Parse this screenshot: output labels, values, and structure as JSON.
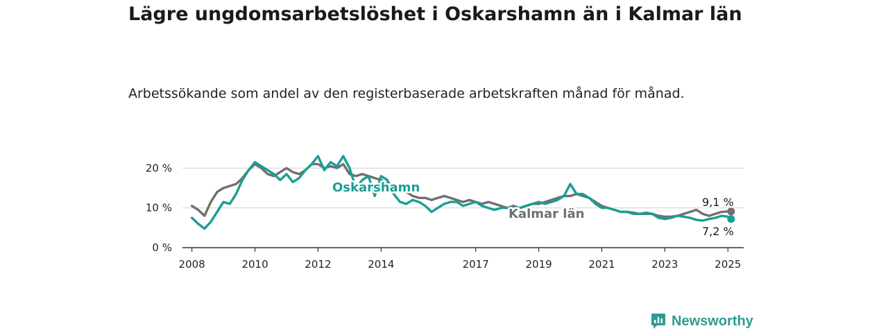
{
  "header": {
    "title": "Lägre ungdomsarbetslöshet i Oskarshamn än i Kalmar län",
    "subtitle": "Arbetssökande som andel av den registerbaserade arbetskraften månad för månad."
  },
  "brand": {
    "name": "Newsworthy",
    "icon": "newsworthy-logo-icon",
    "color": "#2e9b92"
  },
  "chart_data": {
    "type": "line",
    "xlabel": "",
    "ylabel": "",
    "xlim": [
      2007.7,
      2025.5
    ],
    "ylim": [
      0,
      22.5
    ],
    "y_ticks": [
      0,
      10,
      20
    ],
    "y_tick_labels": [
      "0 %",
      "10 %",
      "20 %"
    ],
    "x_ticks": [
      2008,
      2010,
      2012,
      2014,
      2017,
      2019,
      2021,
      2023,
      2025
    ],
    "x_tick_labels": [
      "2008",
      "2010",
      "2012",
      "2014",
      "2017",
      "2019",
      "2021",
      "2023",
      "2025"
    ],
    "grid": "horizontal",
    "legend": "direct labels",
    "series": [
      {
        "name": "Oskarshamn",
        "color": "#1a9e94",
        "end_label": "7,2 %",
        "x": [
          2008.0,
          2008.2,
          2008.4,
          2008.6,
          2008.8,
          2009.0,
          2009.2,
          2009.4,
          2009.6,
          2009.8,
          2010.0,
          2010.2,
          2010.4,
          2010.6,
          2010.8,
          2011.0,
          2011.2,
          2011.4,
          2011.6,
          2011.8,
          2012.0,
          2012.2,
          2012.4,
          2012.6,
          2012.8,
          2013.0,
          2013.2,
          2013.4,
          2013.6,
          2013.8,
          2014.0,
          2014.2,
          2014.4,
          2014.6,
          2014.8,
          2015.0,
          2015.2,
          2015.4,
          2015.6,
          2015.8,
          2016.0,
          2016.2,
          2016.4,
          2016.6,
          2016.8,
          2017.0,
          2017.2,
          2017.4,
          2017.6,
          2017.8,
          2018.0,
          2018.2,
          2018.4,
          2018.6,
          2018.8,
          2019.0,
          2019.2,
          2019.4,
          2019.6,
          2019.8,
          2020.0,
          2020.2,
          2020.4,
          2020.6,
          2020.8,
          2021.0,
          2021.2,
          2021.4,
          2021.6,
          2021.8,
          2022.0,
          2022.2,
          2022.4,
          2022.6,
          2022.8,
          2023.0,
          2023.2,
          2023.4,
          2023.6,
          2023.8,
          2024.0,
          2024.2,
          2024.4,
          2024.6,
          2024.8,
          2025.0,
          2025.1
        ],
        "values": [
          7.5,
          6.0,
          4.8,
          6.5,
          9.0,
          11.5,
          11.0,
          13.5,
          17.0,
          19.5,
          21.5,
          20.5,
          19.5,
          18.5,
          17.0,
          18.5,
          16.5,
          17.5,
          19.5,
          21.0,
          23.0,
          19.5,
          21.5,
          20.5,
          23.0,
          20.0,
          15.0,
          17.0,
          18.0,
          13.0,
          18.0,
          17.0,
          13.5,
          11.5,
          11.0,
          12.0,
          11.5,
          10.5,
          9.0,
          10.0,
          11.0,
          11.5,
          11.5,
          10.5,
          11.0,
          11.5,
          10.5,
          10.0,
          9.5,
          10.0,
          10.0,
          10.0,
          10.0,
          10.5,
          11.0,
          11.5,
          11.0,
          11.5,
          12.0,
          13.0,
          16.0,
          13.5,
          13.5,
          12.5,
          11.0,
          10.0,
          10.0,
          9.5,
          9.0,
          9.0,
          8.5,
          8.5,
          8.8,
          8.5,
          7.5,
          7.2,
          7.5,
          8.0,
          7.8,
          7.5,
          7.0,
          6.8,
          7.2,
          7.5,
          8.0,
          7.8,
          7.2
        ]
      },
      {
        "name": "Kalmar län",
        "color": "#707070",
        "end_label": "9,1 %",
        "x": [
          2008.0,
          2008.2,
          2008.4,
          2008.6,
          2008.8,
          2009.0,
          2009.2,
          2009.4,
          2009.6,
          2009.8,
          2010.0,
          2010.2,
          2010.4,
          2010.6,
          2010.8,
          2011.0,
          2011.2,
          2011.4,
          2011.6,
          2011.8,
          2012.0,
          2012.2,
          2012.4,
          2012.6,
          2012.8,
          2013.0,
          2013.2,
          2013.4,
          2013.6,
          2013.8,
          2014.0,
          2014.2,
          2014.4,
          2014.6,
          2014.8,
          2015.0,
          2015.2,
          2015.4,
          2015.6,
          2015.8,
          2016.0,
          2016.2,
          2016.4,
          2016.6,
          2016.8,
          2017.0,
          2017.2,
          2017.4,
          2017.6,
          2017.8,
          2018.0,
          2018.2,
          2018.4,
          2018.6,
          2018.8,
          2019.0,
          2019.2,
          2019.4,
          2019.6,
          2019.8,
          2020.0,
          2020.2,
          2020.4,
          2020.6,
          2020.8,
          2021.0,
          2021.2,
          2021.4,
          2021.6,
          2021.8,
          2022.0,
          2022.2,
          2022.4,
          2022.6,
          2022.8,
          2023.0,
          2023.2,
          2023.4,
          2023.6,
          2023.8,
          2024.0,
          2024.2,
          2024.4,
          2024.6,
          2024.8,
          2025.0,
          2025.1
        ],
        "values": [
          10.5,
          9.5,
          8.0,
          11.5,
          14.0,
          15.0,
          15.5,
          16.0,
          17.5,
          19.5,
          21.0,
          20.0,
          18.5,
          18.0,
          19.0,
          20.0,
          19.0,
          18.5,
          19.5,
          21.0,
          21.0,
          20.0,
          20.5,
          20.0,
          21.0,
          18.5,
          18.0,
          18.5,
          18.0,
          17.5,
          17.0,
          16.0,
          15.5,
          14.5,
          14.0,
          13.0,
          12.5,
          12.5,
          12.0,
          12.5,
          13.0,
          12.5,
          12.0,
          11.5,
          12.0,
          11.5,
          11.0,
          11.5,
          11.0,
          10.5,
          10.0,
          10.5,
          10.0,
          10.5,
          11.0,
          11.0,
          11.5,
          12.0,
          12.5,
          13.0,
          13.0,
          13.5,
          13.0,
          12.5,
          11.5,
          10.5,
          10.0,
          9.5,
          9.0,
          9.0,
          8.8,
          8.5,
          8.5,
          8.5,
          8.0,
          7.8,
          7.8,
          8.0,
          8.5,
          9.0,
          9.5,
          8.5,
          8.0,
          8.5,
          9.0,
          9.1,
          9.1
        ]
      }
    ]
  }
}
